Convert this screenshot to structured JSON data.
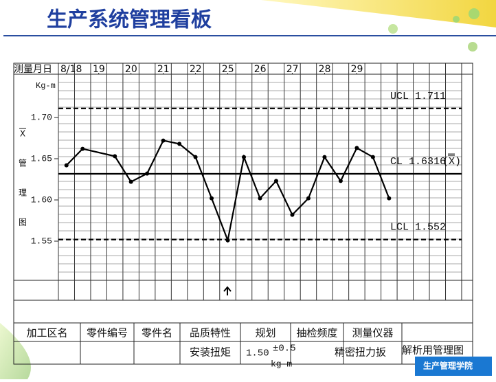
{
  "header": {
    "title": "生产系统管理看板"
  },
  "chart_data": {
    "type": "line",
    "x_label": "测量月日",
    "y_label": "Kg-m",
    "side_label": [
      "X",
      "管",
      "理",
      "图"
    ],
    "x": [
      0,
      1,
      3,
      4,
      5,
      6,
      7,
      8,
      9,
      10,
      11,
      12,
      13,
      14,
      15,
      16,
      17,
      18,
      19,
      20
    ],
    "values": [
      1.642,
      1.662,
      1.653,
      1.622,
      1.632,
      1.672,
      1.668,
      1.652,
      1.602,
      1.551,
      1.652,
      1.602,
      1.623,
      1.582,
      1.602,
      1.652,
      1.623,
      1.663,
      1.652,
      1.602
    ],
    "color": "#000000",
    "xlim": [
      -0.5,
      24.5
    ],
    "xticks": [
      {
        "value": 0,
        "label": "8/18"
      },
      {
        "value": 2,
        "label": "19"
      },
      {
        "value": 4,
        "label": "20"
      },
      {
        "value": 6,
        "label": "21"
      },
      {
        "value": 8,
        "label": "22"
      },
      {
        "value": 10,
        "label": "25"
      },
      {
        "value": 12,
        "label": "26"
      },
      {
        "value": 14,
        "label": "27"
      },
      {
        "value": 16,
        "label": "28"
      },
      {
        "value": 18,
        "label": "29"
      }
    ],
    "ylim": [
      1.5025,
      1.7525
    ],
    "yticks": [
      {
        "value": 1.7,
        "label": "1.70"
      },
      {
        "value": 1.65,
        "label": "1.65"
      },
      {
        "value": 1.6,
        "label": "1.60"
      },
      {
        "value": 1.55,
        "label": "1.55"
      }
    ],
    "grid": true,
    "control_lines": [
      {
        "name": "UCL",
        "value": 1.711,
        "style": "dashed"
      },
      {
        "name": "CL",
        "value": 1.6316,
        "suffix": "(X)",
        "style": "solid"
      },
      {
        "name": "LCL",
        "value": 1.552,
        "style": "dashed"
      }
    ]
  },
  "table": {
    "headers": [
      "加工区名",
      "零件编号",
      "零件名",
      "品质特性",
      "规划",
      "抽检频度",
      "测量仪器"
    ],
    "quality": "安装扭矩",
    "spec": "1.50",
    "tolerance": "±0.5",
    "unit": "kg-m",
    "instrument": "精密扭力扳",
    "chart_kind": "解析用管理图"
  },
  "watermark": "生产管理学院"
}
